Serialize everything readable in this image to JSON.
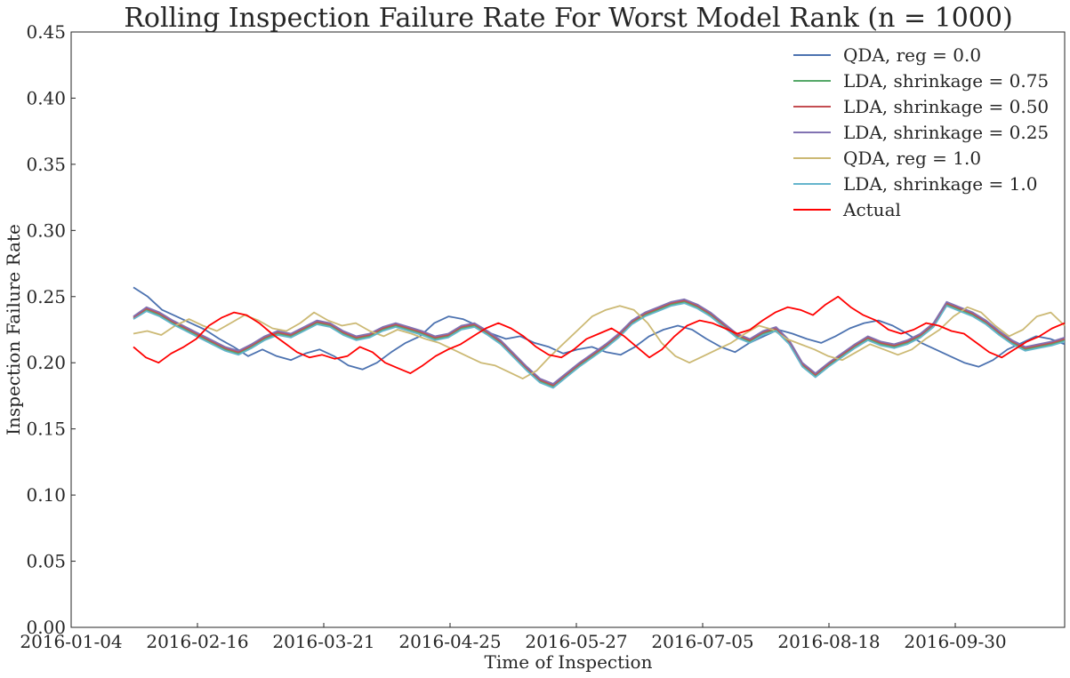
{
  "chart_data": {
    "type": "line",
    "title": "Rolling Inspection Failure Rate For Worst Model Rank (n = 1000)",
    "xlabel": "Time of Inspection",
    "ylabel": "Inspection Failure Rate",
    "x_ticks": [
      "2016-01-04",
      "2016-02-16",
      "2016-03-21",
      "2016-04-25",
      "2016-05-27",
      "2016-07-05",
      "2016-08-18",
      "2016-09-30"
    ],
    "y_ticks": [
      "0.00",
      "0.05",
      "0.10",
      "0.15",
      "0.20",
      "0.25",
      "0.30",
      "0.35",
      "0.40",
      "0.45"
    ],
    "ylim": [
      0,
      0.45
    ],
    "grid": false,
    "legend_position": "top-right",
    "series": [
      {
        "name": "QDA, reg = 0.0",
        "color": "#4c72b0",
        "values": [
          0.257,
          0.25,
          0.24,
          0.235,
          0.23,
          0.225,
          0.218,
          0.212,
          0.205,
          0.21,
          0.205,
          0.202,
          0.207,
          0.21,
          0.205,
          0.198,
          0.195,
          0.2,
          0.208,
          0.215,
          0.22,
          0.23,
          0.235,
          0.233,
          0.228,
          0.222,
          0.218,
          0.22,
          0.215,
          0.212,
          0.207,
          0.21,
          0.212,
          0.208,
          0.206,
          0.212,
          0.22,
          0.225,
          0.228,
          0.225,
          0.218,
          0.212,
          0.208,
          0.215,
          0.22,
          0.225,
          0.222,
          0.218,
          0.215,
          0.22,
          0.226,
          0.23,
          0.232,
          0.228,
          0.222,
          0.215,
          0.21,
          0.205,
          0.2,
          0.197,
          0.202,
          0.21,
          0.215,
          0.22,
          0.218,
          0.214
        ]
      },
      {
        "name": "LDA, shrinkage = 0.75",
        "color": "#55a868",
        "values": [
          0.234,
          0.24,
          0.236,
          0.23,
          0.225,
          0.22,
          0.215,
          0.21,
          0.207,
          0.212,
          0.218,
          0.222,
          0.22,
          0.225,
          0.23,
          0.228,
          0.222,
          0.218,
          0.22,
          0.225,
          0.228,
          0.225,
          0.222,
          0.218,
          0.22,
          0.226,
          0.228,
          0.222,
          0.215,
          0.205,
          0.195,
          0.186,
          0.182,
          0.19,
          0.198,
          0.205,
          0.212,
          0.22,
          0.23,
          0.236,
          0.24,
          0.244,
          0.246,
          0.242,
          0.236,
          0.228,
          0.22,
          0.216,
          0.222,
          0.225,
          0.215,
          0.198,
          0.19,
          0.198,
          0.205,
          0.212,
          0.218,
          0.214,
          0.212,
          0.215,
          0.22,
          0.228,
          0.244,
          0.24,
          0.236,
          0.23,
          0.222,
          0.215,
          0.21,
          0.212,
          0.214,
          0.217
        ]
      },
      {
        "name": "LDA, shrinkage = 0.50",
        "color": "#c44e52",
        "values": [
          0.234,
          0.241,
          0.237,
          0.231,
          0.226,
          0.221,
          0.216,
          0.211,
          0.208,
          0.213,
          0.219,
          0.223,
          0.221,
          0.226,
          0.231,
          0.229,
          0.223,
          0.219,
          0.221,
          0.226,
          0.229,
          0.226,
          0.223,
          0.219,
          0.221,
          0.227,
          0.229,
          0.223,
          0.216,
          0.206,
          0.196,
          0.187,
          0.183,
          0.191,
          0.199,
          0.206,
          0.213,
          0.221,
          0.231,
          0.237,
          0.241,
          0.245,
          0.247,
          0.243,
          0.237,
          0.229,
          0.221,
          0.217,
          0.223,
          0.226,
          0.216,
          0.199,
          0.191,
          0.199,
          0.206,
          0.213,
          0.219,
          0.215,
          0.213,
          0.216,
          0.221,
          0.229,
          0.245,
          0.241,
          0.237,
          0.231,
          0.223,
          0.216,
          0.211,
          0.213,
          0.215,
          0.218
        ]
      },
      {
        "name": "LDA, shrinkage = 0.25",
        "color": "#8172b2",
        "values": [
          0.235,
          0.242,
          0.238,
          0.232,
          0.227,
          0.222,
          0.217,
          0.212,
          0.209,
          0.214,
          0.22,
          0.224,
          0.222,
          0.227,
          0.232,
          0.23,
          0.224,
          0.22,
          0.222,
          0.227,
          0.23,
          0.227,
          0.224,
          0.22,
          0.222,
          0.228,
          0.23,
          0.224,
          0.217,
          0.207,
          0.197,
          0.188,
          0.184,
          0.192,
          0.2,
          0.207,
          0.214,
          0.222,
          0.232,
          0.238,
          0.242,
          0.246,
          0.248,
          0.244,
          0.238,
          0.23,
          0.222,
          0.218,
          0.224,
          0.227,
          0.217,
          0.2,
          0.192,
          0.2,
          0.207,
          0.214,
          0.22,
          0.216,
          0.214,
          0.217,
          0.222,
          0.23,
          0.246,
          0.242,
          0.238,
          0.232,
          0.224,
          0.217,
          0.212,
          0.214,
          0.216,
          0.219
        ]
      },
      {
        "name": "QDA, reg = 1.0",
        "color": "#ccb974",
        "values": [
          0.222,
          0.224,
          0.221,
          0.228,
          0.233,
          0.228,
          0.224,
          0.23,
          0.236,
          0.232,
          0.226,
          0.224,
          0.23,
          0.238,
          0.232,
          0.228,
          0.23,
          0.224,
          0.22,
          0.225,
          0.222,
          0.218,
          0.215,
          0.21,
          0.205,
          0.2,
          0.198,
          0.193,
          0.188,
          0.194,
          0.205,
          0.215,
          0.225,
          0.235,
          0.24,
          0.243,
          0.24,
          0.23,
          0.215,
          0.205,
          0.2,
          0.205,
          0.21,
          0.215,
          0.222,
          0.228,
          0.225,
          0.218,
          0.214,
          0.21,
          0.205,
          0.202,
          0.208,
          0.214,
          0.21,
          0.206,
          0.21,
          0.218,
          0.225,
          0.235,
          0.242,
          0.238,
          0.228,
          0.22,
          0.225,
          0.235,
          0.238,
          0.228
        ]
      },
      {
        "name": "LDA, shrinkage = 1.0",
        "color": "#64b5cd",
        "values": [
          0.233,
          0.239,
          0.235,
          0.229,
          0.224,
          0.219,
          0.214,
          0.209,
          0.206,
          0.211,
          0.217,
          0.221,
          0.219,
          0.224,
          0.229,
          0.227,
          0.221,
          0.217,
          0.219,
          0.224,
          0.227,
          0.224,
          0.221,
          0.217,
          0.219,
          0.225,
          0.227,
          0.221,
          0.214,
          0.204,
          0.194,
          0.185,
          0.181,
          0.189,
          0.197,
          0.204,
          0.211,
          0.219,
          0.229,
          0.235,
          0.239,
          0.243,
          0.245,
          0.241,
          0.235,
          0.227,
          0.219,
          0.215,
          0.221,
          0.224,
          0.214,
          0.197,
          0.189,
          0.197,
          0.204,
          0.211,
          0.217,
          0.213,
          0.211,
          0.214,
          0.219,
          0.227,
          0.243,
          0.239,
          0.235,
          0.229,
          0.221,
          0.214,
          0.209,
          0.211,
          0.213,
          0.216
        ]
      },
      {
        "name": "Actual",
        "color": "#ff0000",
        "values": [
          0.212,
          0.204,
          0.2,
          0.207,
          0.212,
          0.218,
          0.228,
          0.234,
          0.238,
          0.236,
          0.23,
          0.222,
          0.215,
          0.208,
          0.204,
          0.206,
          0.203,
          0.205,
          0.212,
          0.208,
          0.2,
          0.196,
          0.192,
          0.198,
          0.205,
          0.21,
          0.214,
          0.22,
          0.226,
          0.23,
          0.226,
          0.22,
          0.212,
          0.206,
          0.204,
          0.21,
          0.218,
          0.222,
          0.226,
          0.22,
          0.212,
          0.204,
          0.21,
          0.22,
          0.228,
          0.232,
          0.23,
          0.226,
          0.222,
          0.225,
          0.232,
          0.238,
          0.242,
          0.24,
          0.236,
          0.244,
          0.25,
          0.242,
          0.236,
          0.232,
          0.225,
          0.222,
          0.225,
          0.23,
          0.228,
          0.224,
          0.222,
          0.215,
          0.208,
          0.204,
          0.21,
          0.216,
          0.22,
          0.226,
          0.23
        ]
      }
    ]
  }
}
